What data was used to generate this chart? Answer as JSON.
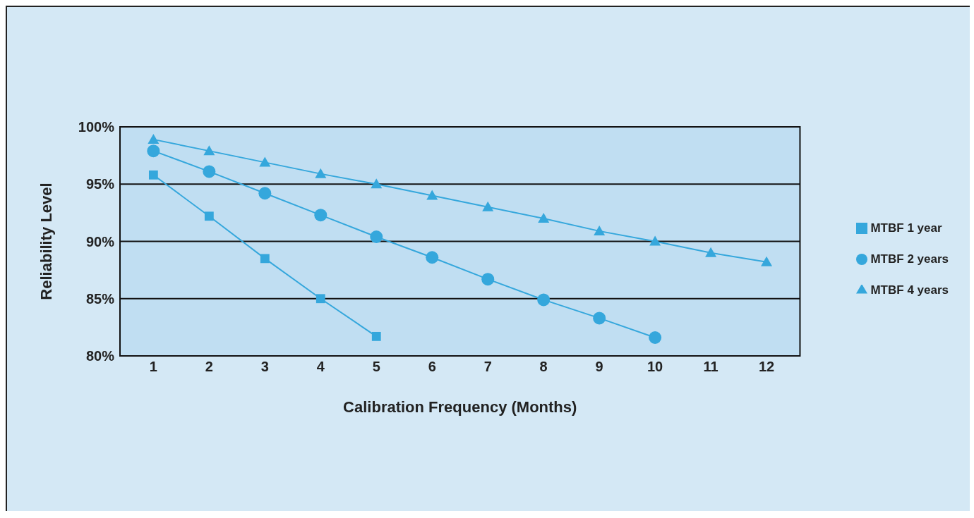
{
  "chart_data": {
    "type": "line",
    "xlabel": "Calibration Frequency (Months)",
    "ylabel": "Reliability Level",
    "x": [
      1,
      2,
      3,
      4,
      5,
      6,
      7,
      8,
      9,
      10,
      11,
      12
    ],
    "series": [
      {
        "name": "MTBF 1 year",
        "color": "#35a7dc",
        "marker": "square",
        "values": [
          95.8,
          92.2,
          88.5,
          85,
          81.7,
          null,
          null,
          null,
          null,
          null,
          null,
          null
        ]
      },
      {
        "name": "MTBF 2 years",
        "color": "#35a7dc",
        "marker": "circle",
        "values": [
          97.9,
          96.1,
          94.2,
          92.3,
          90.4,
          88.6,
          86.7,
          84.9,
          83.3,
          81.6,
          null,
          null
        ]
      },
      {
        "name": "MTBF 4 years",
        "color": "#35a7dc",
        "marker": "triangle",
        "values": [
          98.9,
          97.9,
          96.9,
          95.9,
          95,
          94,
          93,
          92,
          90.9,
          90,
          89,
          88.2
        ]
      }
    ],
    "xlim": [
      0.4,
      12.6
    ],
    "xticks": [
      1,
      2,
      3,
      4,
      5,
      6,
      7,
      8,
      9,
      10,
      11,
      12
    ],
    "ylim": [
      80,
      100
    ],
    "yticks": [
      {
        "value": 80,
        "label": "80%"
      },
      {
        "value": 85,
        "label": "85%"
      },
      {
        "value": 90,
        "label": "90%"
      },
      {
        "value": 95,
        "label": "95%"
      },
      {
        "value": 100,
        "label": "100%"
      }
    ],
    "grid": "y",
    "legend": "right"
  }
}
